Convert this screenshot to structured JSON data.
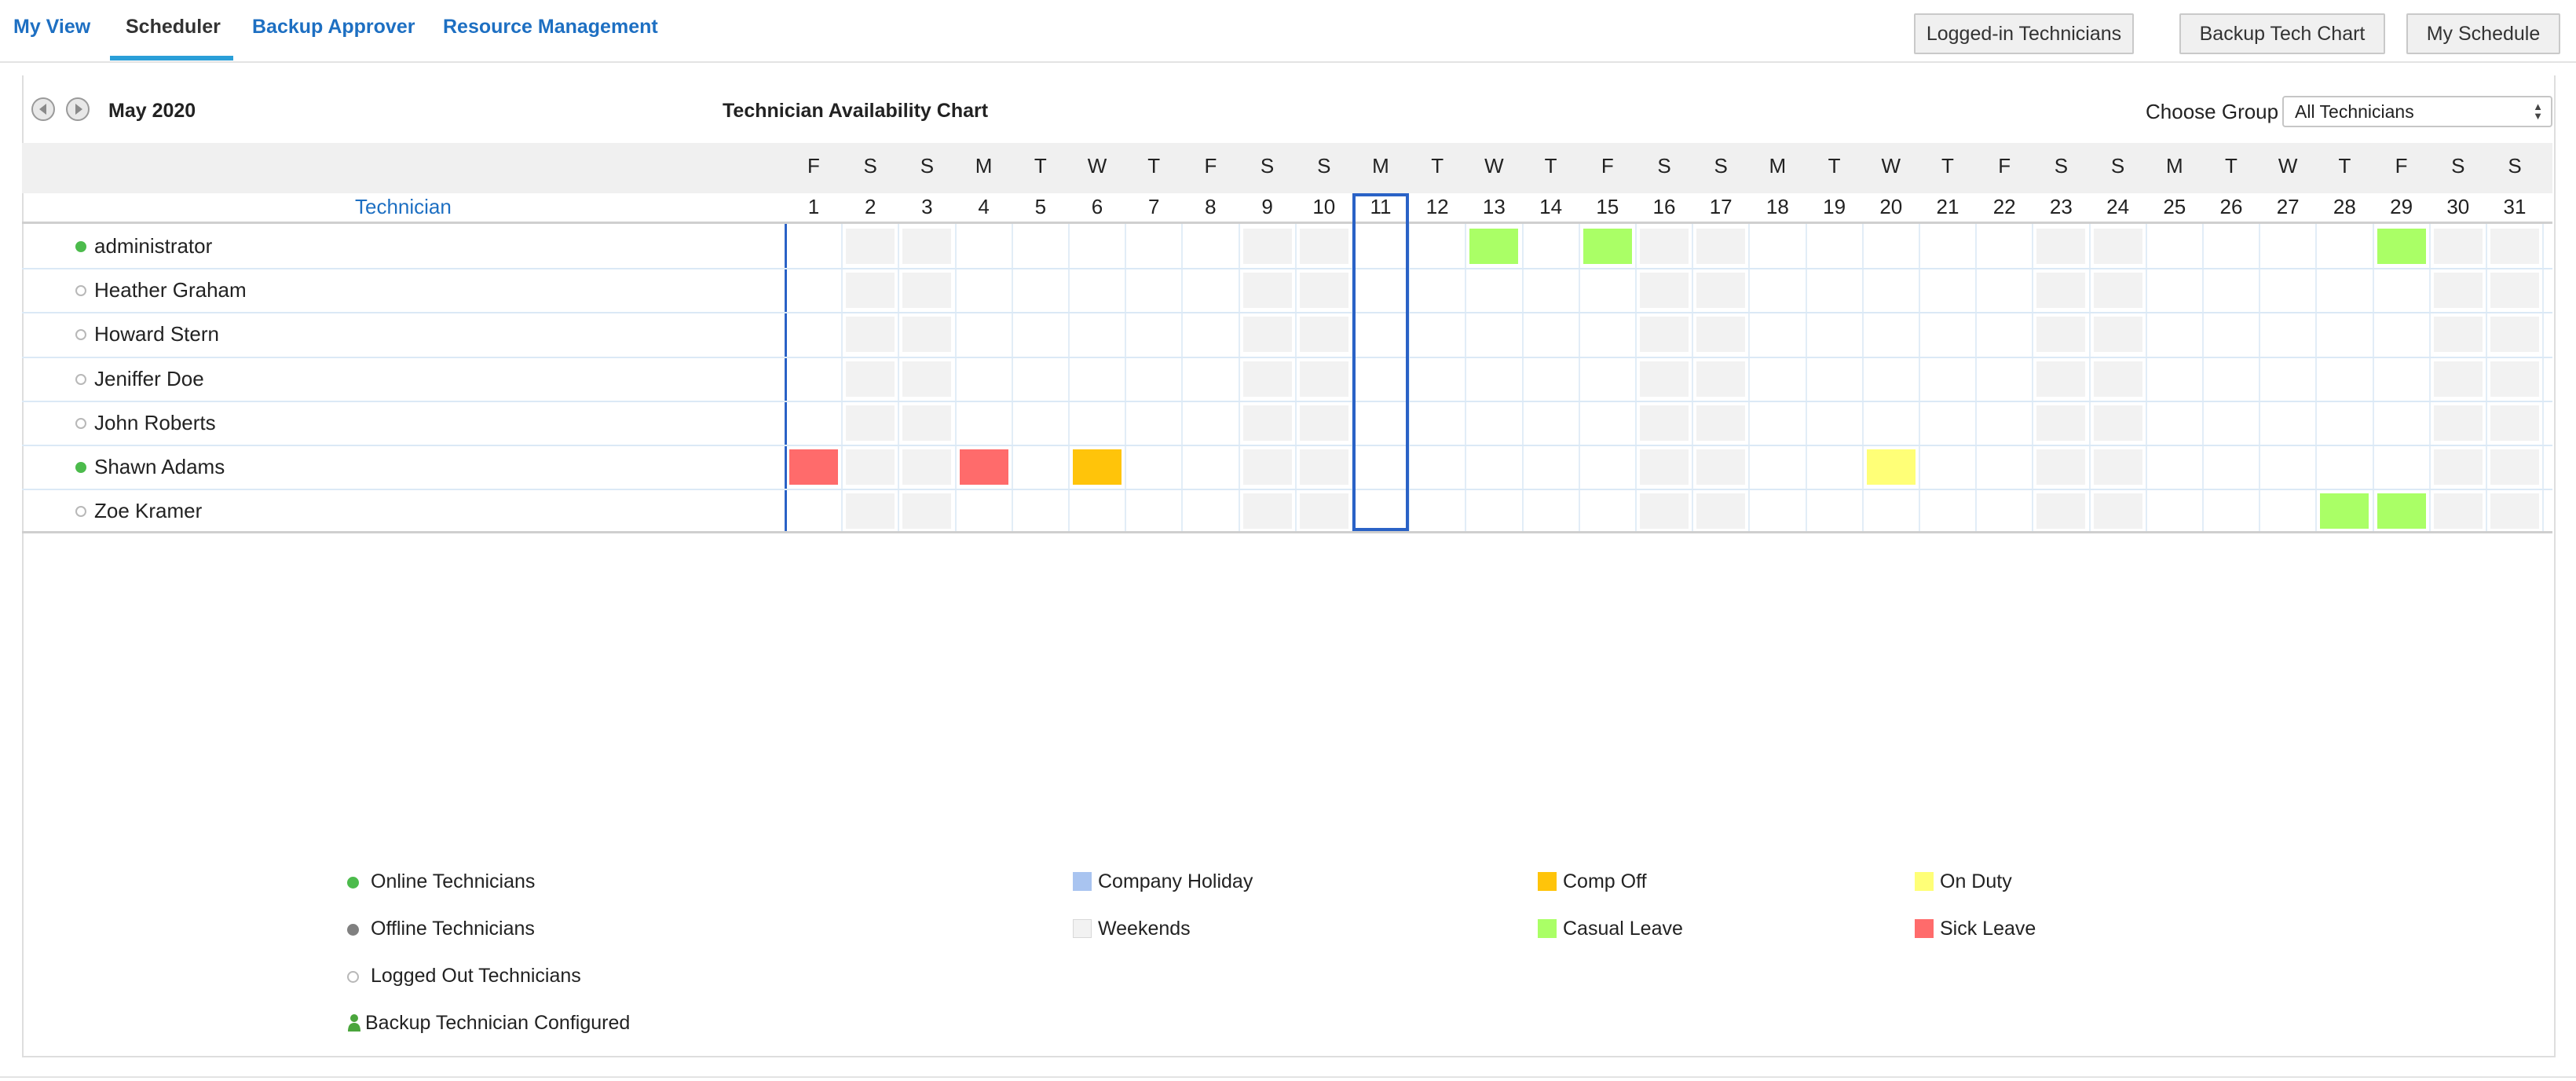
{
  "nav": {
    "tabs": [
      {
        "label": "My View"
      },
      {
        "label": "Scheduler"
      },
      {
        "label": "Backup Approver"
      },
      {
        "label": "Resource Management"
      }
    ],
    "buttons": [
      {
        "label": "Logged-in Technicians"
      },
      {
        "label": "Backup Tech Chart"
      },
      {
        "label": "My Schedule"
      }
    ]
  },
  "chart": {
    "month": "May 2020",
    "title": "Technician Availability Chart",
    "choose_group_label": "Choose Group",
    "group_selected": "All Technicians",
    "technician_header": "Technician",
    "today": 11,
    "days": [
      {
        "dow": "F",
        "date": "1"
      },
      {
        "dow": "S",
        "date": "2"
      },
      {
        "dow": "S",
        "date": "3"
      },
      {
        "dow": "M",
        "date": "4"
      },
      {
        "dow": "T",
        "date": "5"
      },
      {
        "dow": "W",
        "date": "6"
      },
      {
        "dow": "T",
        "date": "7"
      },
      {
        "dow": "F",
        "date": "8"
      },
      {
        "dow": "S",
        "date": "9"
      },
      {
        "dow": "S",
        "date": "10"
      },
      {
        "dow": "M",
        "date": "11"
      },
      {
        "dow": "T",
        "date": "12"
      },
      {
        "dow": "W",
        "date": "13"
      },
      {
        "dow": "T",
        "date": "14"
      },
      {
        "dow": "F",
        "date": "15"
      },
      {
        "dow": "S",
        "date": "16"
      },
      {
        "dow": "S",
        "date": "17"
      },
      {
        "dow": "M",
        "date": "18"
      },
      {
        "dow": "T",
        "date": "19"
      },
      {
        "dow": "W",
        "date": "20"
      },
      {
        "dow": "T",
        "date": "21"
      },
      {
        "dow": "F",
        "date": "22"
      },
      {
        "dow": "S",
        "date": "23"
      },
      {
        "dow": "S",
        "date": "24"
      },
      {
        "dow": "M",
        "date": "25"
      },
      {
        "dow": "T",
        "date": "26"
      },
      {
        "dow": "W",
        "date": "27"
      },
      {
        "dow": "T",
        "date": "28"
      },
      {
        "dow": "F",
        "date": "29"
      },
      {
        "dow": "S",
        "date": "30"
      },
      {
        "dow": "S",
        "date": "31"
      }
    ],
    "weekend_days": [
      2,
      3,
      9,
      10,
      16,
      17,
      23,
      24,
      30,
      31
    ],
    "technicians": [
      {
        "name": "administrator",
        "status": "online",
        "events": [
          {
            "day": 13,
            "type": "casual"
          },
          {
            "day": 15,
            "type": "casual"
          },
          {
            "day": 29,
            "type": "casual"
          }
        ]
      },
      {
        "name": "Heather Graham",
        "status": "loggedout",
        "events": []
      },
      {
        "name": "Howard Stern",
        "status": "loggedout",
        "events": []
      },
      {
        "name": "Jeniffer Doe",
        "status": "loggedout",
        "events": []
      },
      {
        "name": "John Roberts",
        "status": "loggedout",
        "events": []
      },
      {
        "name": "Shawn Adams",
        "status": "online",
        "events": [
          {
            "day": 1,
            "type": "sick"
          },
          {
            "day": 4,
            "type": "sick"
          },
          {
            "day": 6,
            "type": "comp"
          },
          {
            "day": 20,
            "type": "duty"
          }
        ]
      },
      {
        "name": "Zoe Kramer",
        "status": "loggedout",
        "events": [
          {
            "day": 28,
            "type": "casual"
          },
          {
            "day": 29,
            "type": "casual"
          }
        ]
      }
    ]
  },
  "legend": {
    "online": "Online Technicians",
    "offline": "Offline Technicians",
    "logged_out": "Logged Out Technicians",
    "backup": "Backup Technician Configured",
    "company_holiday": "Company Holiday",
    "weekends": "Weekends",
    "comp_off": "Comp Off",
    "casual_leave": "Casual Leave",
    "on_duty": "On Duty",
    "sick_leave": "Sick Leave"
  },
  "colors": {
    "online": "#4cbb4c",
    "offline": "#808080",
    "company_holiday": "#a9c4f0",
    "weekends": "#f2f2f2",
    "comp_off": "#ffc40a",
    "casual_leave": "#aaff66",
    "on_duty": "#ffff77",
    "sick_leave": "#ff6b6b",
    "today_border": "#2a62c6",
    "link": "#1d6fc2"
  }
}
